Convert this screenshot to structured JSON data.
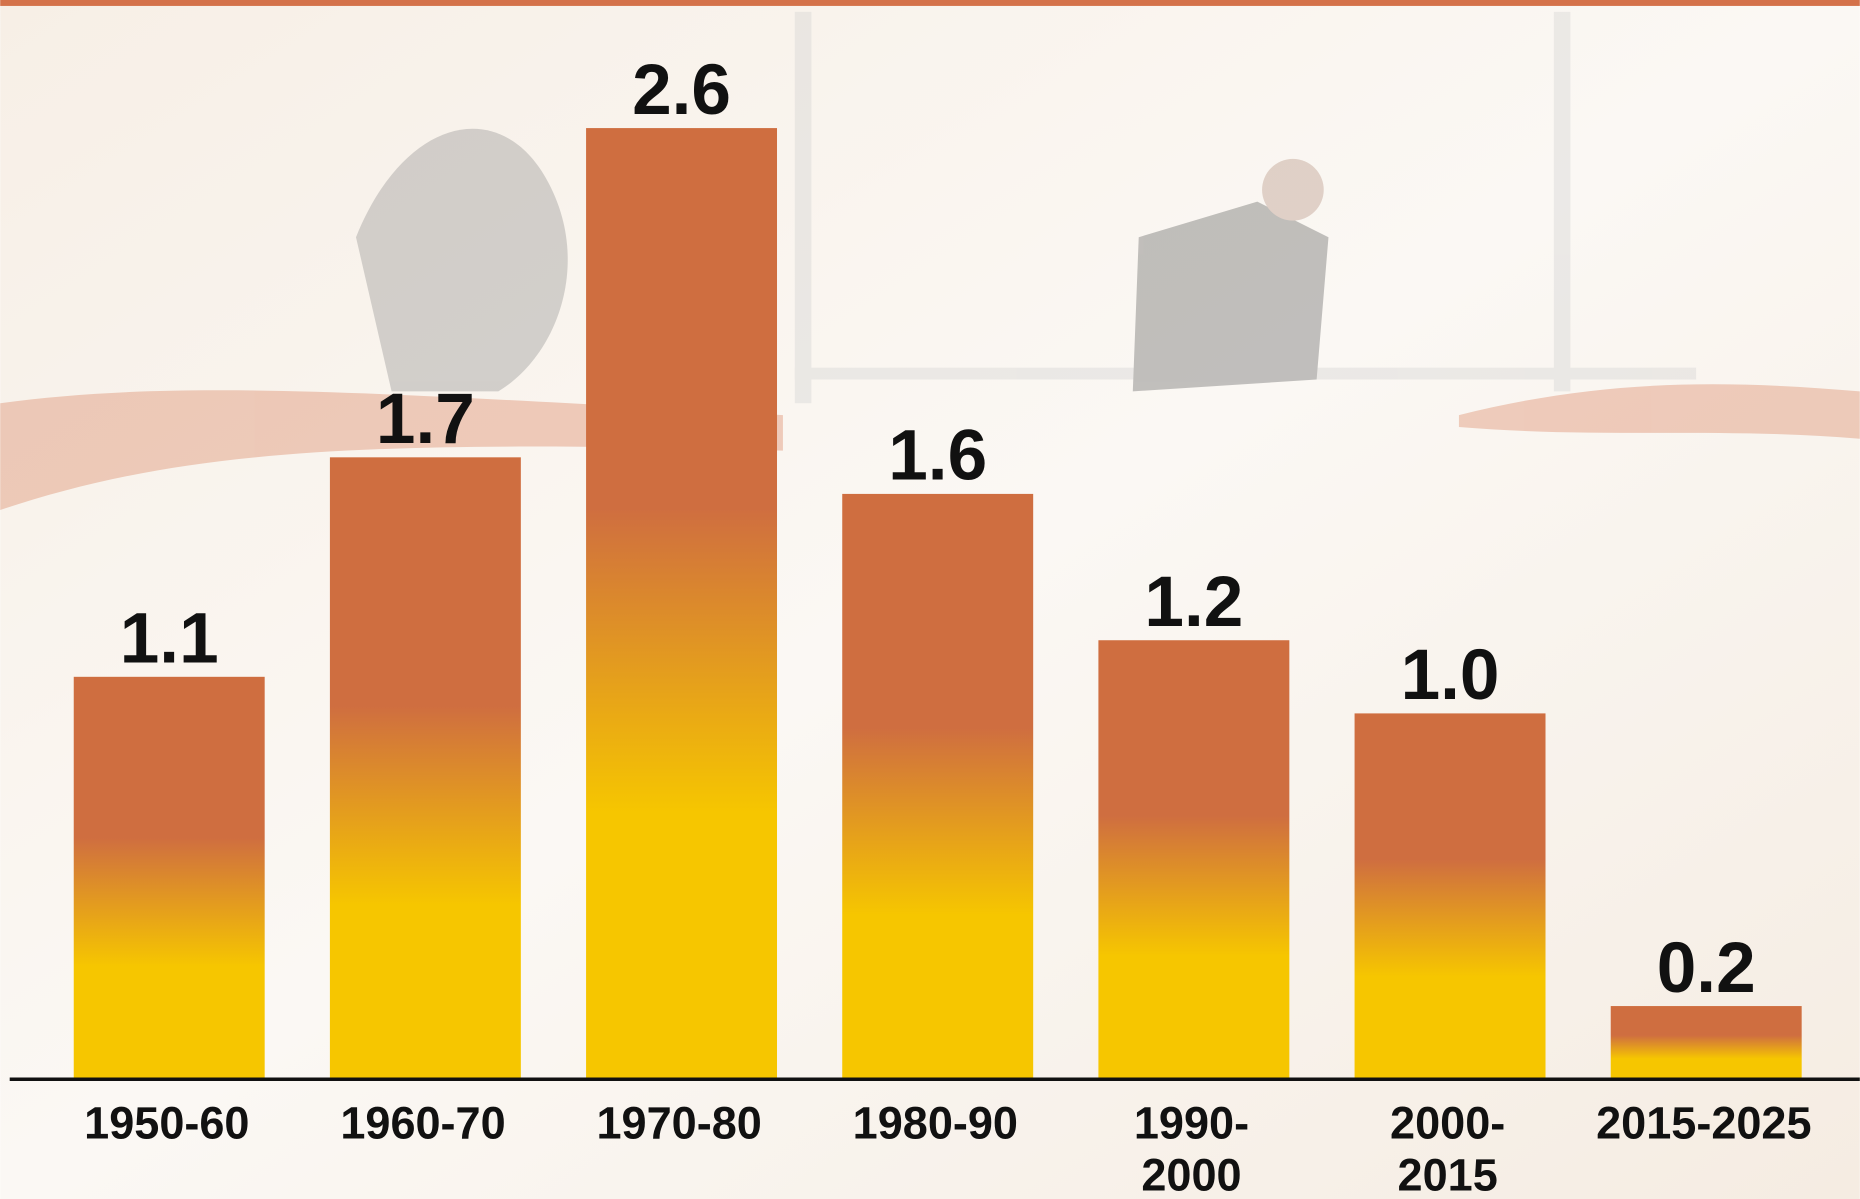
{
  "chart_data": {
    "type": "bar",
    "categories": [
      "1950-60",
      "1960-70",
      "1970-80",
      "1980-90",
      "1990-2000",
      "2000-2015",
      "2015-2025"
    ],
    "values": [
      1.1,
      1.7,
      2.6,
      1.6,
      1.2,
      1.0,
      0.2
    ],
    "value_labels": [
      "1.1",
      "1.7",
      "2.6",
      "1.6",
      "1.2",
      "1.0",
      "0.2"
    ],
    "gradient": [
      "#cf6e40",
      "#f6c600"
    ]
  }
}
